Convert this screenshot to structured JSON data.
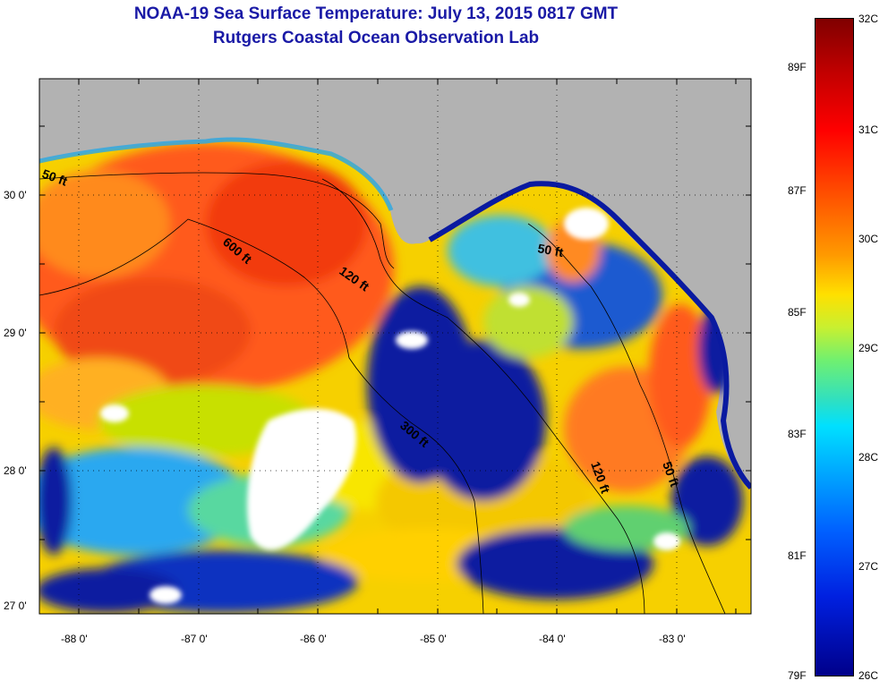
{
  "header": {
    "title": "NOAA-19 Sea Surface Temperature:  July 13, 2015 0817 GMT",
    "subtitle": "Rutgers Coastal Ocean Observation Lab"
  },
  "axes": {
    "x_ticks": [
      "-88 0'",
      "-87 0'",
      "-86 0'",
      "-85 0'",
      "-84 0'",
      "-83 0'"
    ],
    "y_ticks": [
      "30 0'",
      "29 0'",
      "28 0'",
      "27 0'"
    ],
    "lon_range": [
      -88.35,
      -82.35
    ],
    "lat_range": [
      26.95,
      30.85
    ]
  },
  "contours": [
    "50 ft",
    "600 ft",
    "120 ft",
    "50 ft",
    "300 ft",
    "120 ft",
    "50 ft"
  ],
  "colorbar": {
    "fahrenheit": [
      "89F",
      "87F",
      "85F",
      "83F",
      "81F",
      "79F"
    ],
    "celsius": [
      "32C",
      "31C",
      "30C",
      "29C",
      "28C",
      "27C",
      "26C"
    ],
    "range_c": [
      26,
      32
    ]
  },
  "colors": {
    "land": "#b2b2b2",
    "cloud": "#ffffff",
    "title": "#1a1aa6"
  }
}
